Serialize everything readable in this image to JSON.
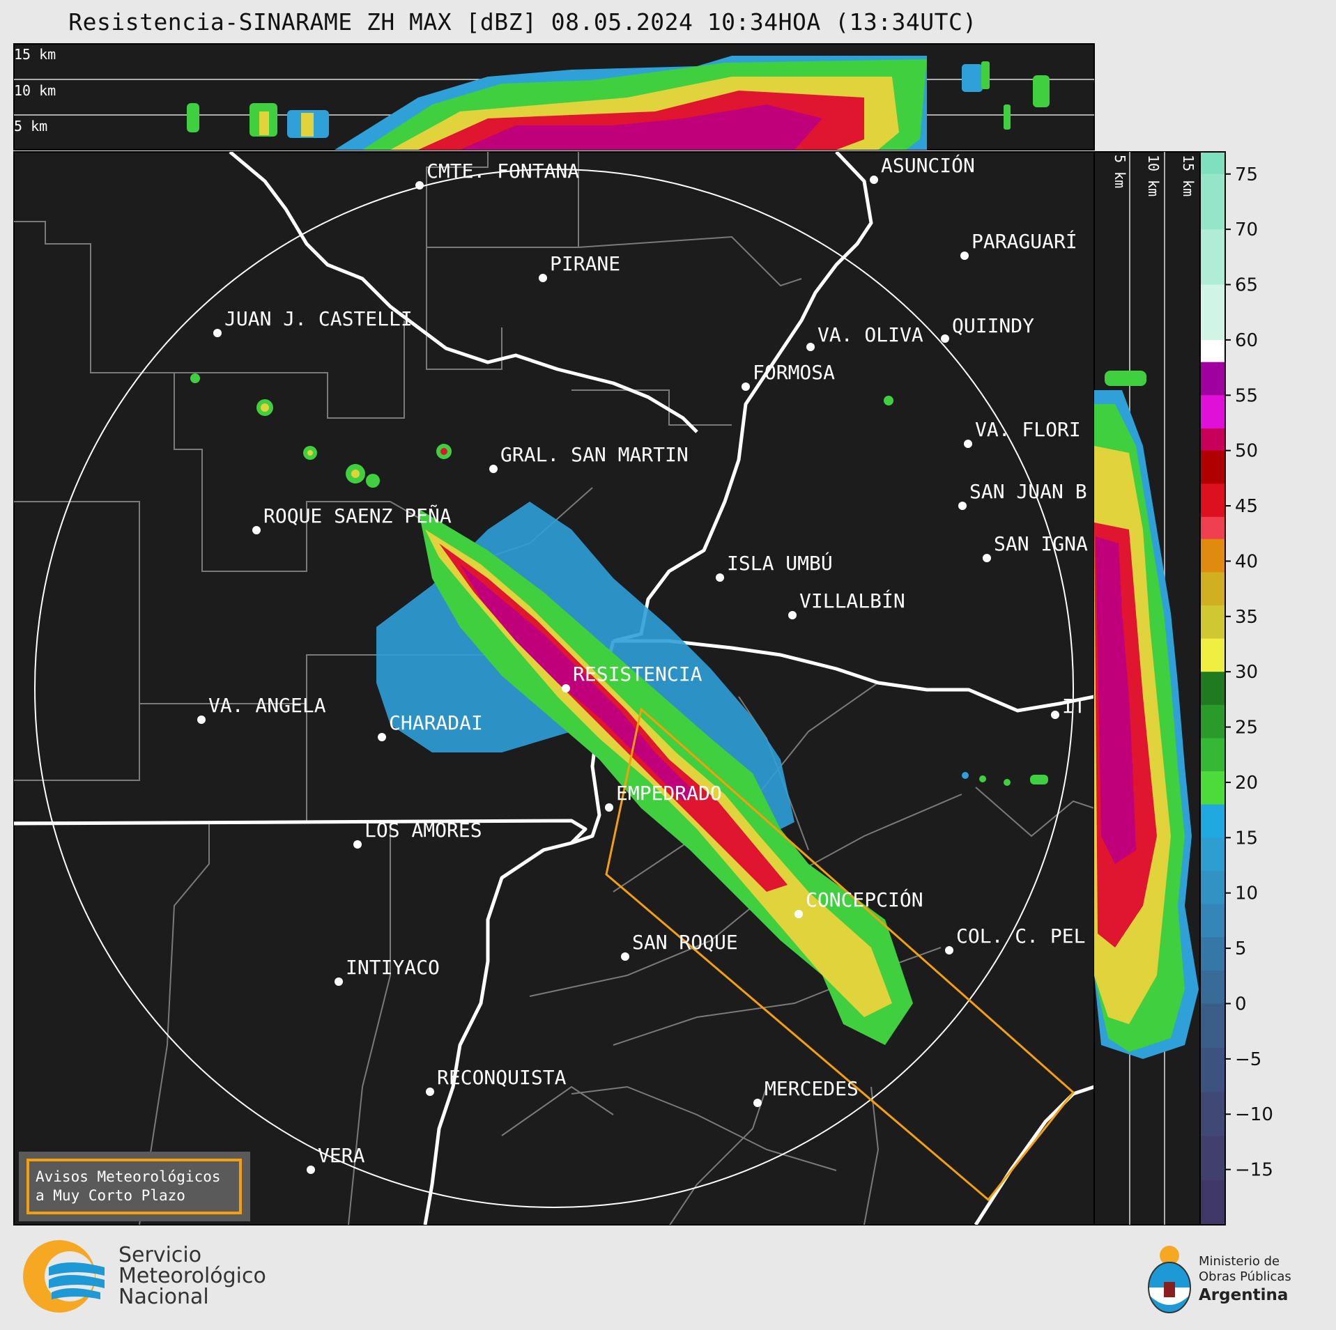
{
  "title": "Resistencia-SINARAME ZH MAX [dBZ] 08.05.2024 10:34HOA (13:34UTC)",
  "top_panel": {
    "height_labels": [
      "15 km",
      "10 km",
      "5 km"
    ]
  },
  "right_panel": {
    "height_labels": [
      "5 km",
      "10 km",
      "15 km"
    ]
  },
  "colorbar": {
    "ticks": [
      "75",
      "70",
      "65",
      "60",
      "55",
      "50",
      "45",
      "40",
      "35",
      "30",
      "25",
      "20",
      "15",
      "10",
      "5",
      "0",
      "−5",
      "−10",
      "−15"
    ]
  },
  "cities": [
    {
      "name": "CMTE. FONTANA"
    },
    {
      "name": "ASUNCIÓN"
    },
    {
      "name": "PARAGUARÍ"
    },
    {
      "name": "PIRANE"
    },
    {
      "name": "JUAN J. CASTELLI"
    },
    {
      "name": "VA. OLIVA"
    },
    {
      "name": "QUIINDY"
    },
    {
      "name": "FORMOSA"
    },
    {
      "name": "VA. FLORI"
    },
    {
      "name": "GRAL. SAN MARTIN"
    },
    {
      "name": "SAN JUAN B"
    },
    {
      "name": "ROQUE SAENZ PEÑA"
    },
    {
      "name": "SAN IGNA"
    },
    {
      "name": "ISLA UMBÚ"
    },
    {
      "name": "VILLALBÍN"
    },
    {
      "name": "RESISTENCIA"
    },
    {
      "name": "VA. ANGELA"
    },
    {
      "name": "CHARADAI"
    },
    {
      "name": "IT"
    },
    {
      "name": "EMPEDRADO"
    },
    {
      "name": "LOS AMORES"
    },
    {
      "name": "CONCEPCIÓN"
    },
    {
      "name": "SAN ROQUE"
    },
    {
      "name": "COL. C. PEL"
    },
    {
      "name": "INTIYACO"
    },
    {
      "name": "RECONQUISTA"
    },
    {
      "name": "MERCEDES"
    },
    {
      "name": "VERA"
    }
  ],
  "warning_box": {
    "line1": "Avisos Meteorológicos",
    "line2": "a Muy Corto Plazo"
  },
  "footer": {
    "smn": [
      "Servicio",
      "Meteorológico",
      "Nacional"
    ],
    "ministry": {
      "line1": "Ministerio de",
      "line2": "Obras Públicas",
      "line3": "Argentina"
    }
  },
  "colors": {
    "map_bg": "#1c1c1c",
    "river": "#ffffff",
    "boundary": "#7a7a7a",
    "warning_polygon": "#f5a00a",
    "accent_smn": "#f7a823"
  }
}
